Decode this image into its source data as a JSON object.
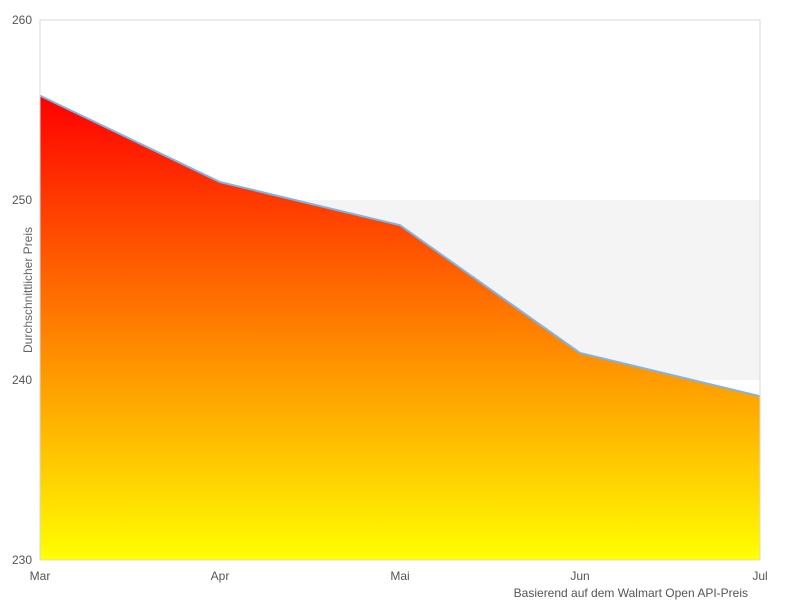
{
  "chart_data": {
    "type": "area",
    "title": "",
    "xlabel": "",
    "ylabel": "Durchschnittlicher Preis",
    "categories": [
      "Mar",
      "Apr",
      "Mai",
      "Jun",
      "Jul"
    ],
    "values": [
      255.8,
      251,
      248.6,
      241.5,
      239.1
    ],
    "ylim": [
      230,
      260
    ],
    "yticks": [
      230,
      240,
      250,
      260
    ],
    "grid": false,
    "legend": "none",
    "plot_band": {
      "from": 240,
      "to": 250
    },
    "credits": "Basierend auf dem Walmart Open API-Preis",
    "colors": {
      "line": "#7cb5ec",
      "gradient_top": "#ff0000",
      "gradient_bottom": "#ffff00",
      "band": "#f4f4f4",
      "plot_border": "#d8d8d8",
      "axis_label": "#555555",
      "axis_title": "#666666",
      "credits_text": "#555555"
    }
  }
}
